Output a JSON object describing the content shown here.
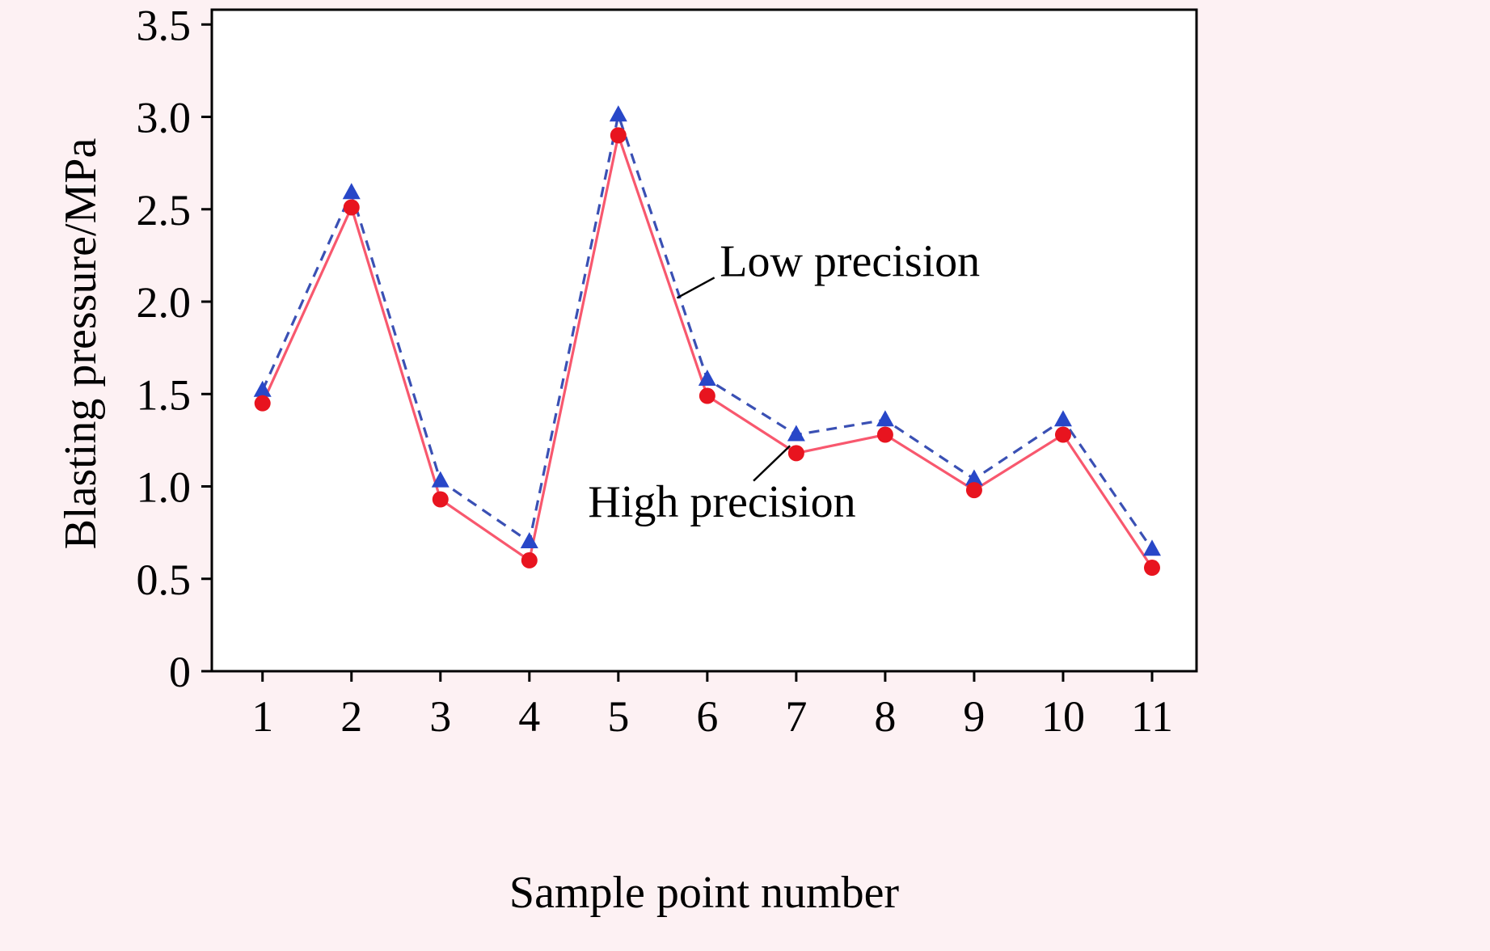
{
  "page": {
    "background_color": "#fdf1f3"
  },
  "chart_data": {
    "type": "line",
    "title": "",
    "xlabel": "Sample point number",
    "ylabel": "Blasting pressure/MPa",
    "x": [
      1,
      2,
      3,
      4,
      5,
      6,
      7,
      8,
      9,
      10,
      11
    ],
    "xtick_labels": [
      "1",
      "2",
      "3",
      "4",
      "5",
      "6",
      "7",
      "8",
      "9",
      "10",
      "11"
    ],
    "yticks": [
      0,
      0.5,
      1.0,
      1.5,
      2.0,
      2.5,
      3.0,
      3.5
    ],
    "ytick_labels": [
      "0",
      "0.5",
      "1.0",
      "1.5",
      "2.0",
      "2.5",
      "3.0",
      "3.5"
    ],
    "xlim": [
      0.43,
      11.5
    ],
    "ylim": [
      0,
      3.5
    ],
    "grid": false,
    "legend_position": "none (inline annotations with pointer lines)",
    "plot_bg": "#ffffff",
    "axis_color": "#000000",
    "series": [
      {
        "name": "Low precision",
        "values": [
          1.52,
          2.59,
          1.03,
          0.7,
          3.01,
          1.58,
          1.28,
          1.36,
          1.04,
          1.36,
          0.66
        ],
        "color": "#2847c8",
        "line_color": "#3a50b4",
        "line_style": "dashed",
        "marker": "triangle"
      },
      {
        "name": "High precision",
        "values": [
          1.45,
          2.51,
          0.93,
          0.6,
          2.9,
          1.49,
          1.18,
          1.28,
          0.98,
          1.28,
          0.56
        ],
        "color": "#e8141f",
        "line_color": "#f8586e",
        "line_style": "solid",
        "marker": "circle"
      }
    ],
    "annotations": [
      {
        "text": "Low precision",
        "text_x": 6.14,
        "text_y": 2.22,
        "line": {
          "x1": 5.66,
          "y1": 2.02,
          "x2": 6.08,
          "y2": 2.13
        }
      },
      {
        "text": "High precision",
        "text_x": 4.66,
        "text_y": 0.92,
        "line": {
          "x1": 6.52,
          "y1": 1.03,
          "x2": 6.93,
          "y2": 1.22
        }
      }
    ]
  }
}
